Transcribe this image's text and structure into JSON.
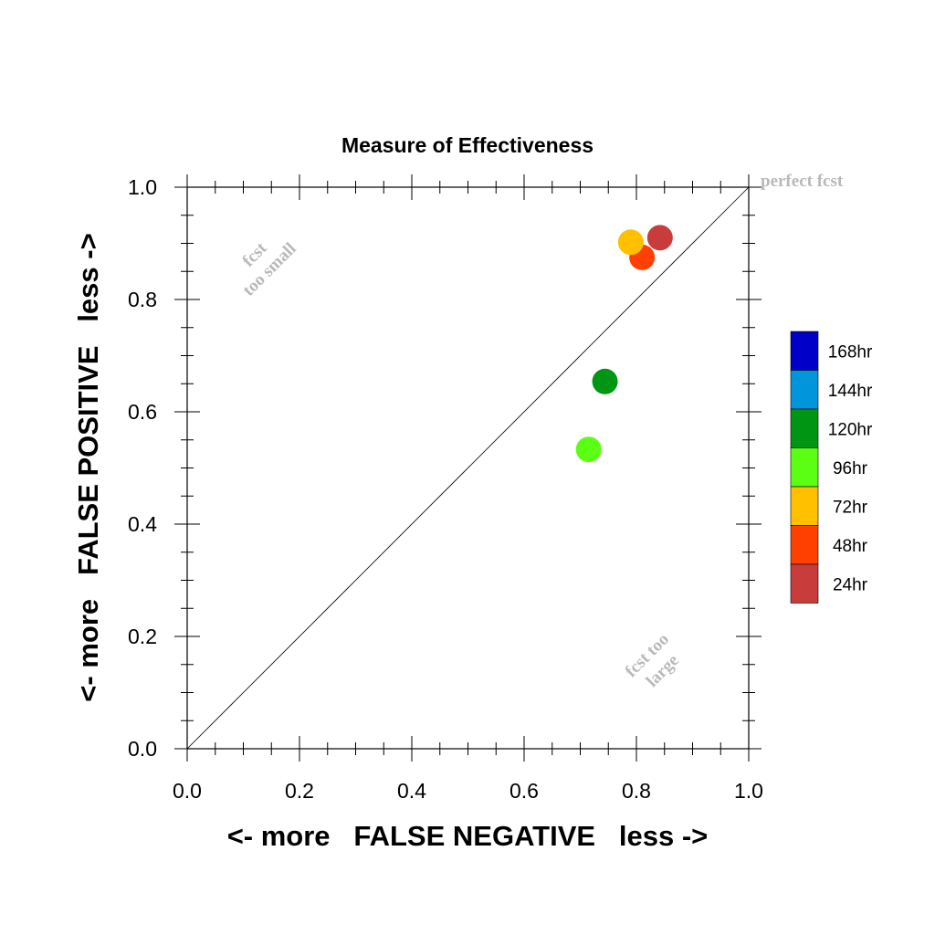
{
  "chart_data": {
    "type": "scatter",
    "title": "Measure of Effectiveness",
    "xlabel": "<- more   FALSE NEGATIVE   less ->",
    "ylabel": "<- more   FALSE POSITIVE   less ->",
    "xlim": [
      0.0,
      1.0
    ],
    "ylim": [
      0.0,
      1.0
    ],
    "x_ticks": [
      "0.0",
      "0.2",
      "0.4",
      "0.6",
      "0.8",
      "1.0"
    ],
    "y_ticks": [
      "0.0",
      "0.2",
      "0.4",
      "0.6",
      "0.8",
      "1.0"
    ],
    "grid": false,
    "reference_line": "diagonal y = x",
    "annotations": {
      "perfect": "perfect fcst",
      "too_small_line1": "fcst",
      "too_small_line2": "too small",
      "too_large_line1": "fcst too",
      "too_large_line2": "large"
    },
    "legend_placement": "right",
    "legend": [
      {
        "label": "168hr",
        "color": "#0000c8"
      },
      {
        "label": "144hr",
        "color": "#0096dc"
      },
      {
        "label": "120hr",
        "color": "#009614"
      },
      {
        "label": "96hr",
        "color": "#5aff14"
      },
      {
        "label": "72hr",
        "color": "#ffc000"
      },
      {
        "label": "48hr",
        "color": "#ff4000"
      },
      {
        "label": "24hr",
        "color": "#c83c3c"
      }
    ],
    "points": [
      {
        "label": "24hr",
        "x": 0.842,
        "y": 0.91,
        "color": "#c83c3c"
      },
      {
        "label": "48hr",
        "x": 0.81,
        "y": 0.875,
        "color": "#ff4000"
      },
      {
        "label": "72hr",
        "x": 0.79,
        "y": 0.902,
        "color": "#ffc000"
      },
      {
        "label": "96hr",
        "x": 0.715,
        "y": 0.533,
        "color": "#5aff14"
      },
      {
        "label": "120hr",
        "x": 0.744,
        "y": 0.654,
        "color": "#009614"
      }
    ]
  }
}
